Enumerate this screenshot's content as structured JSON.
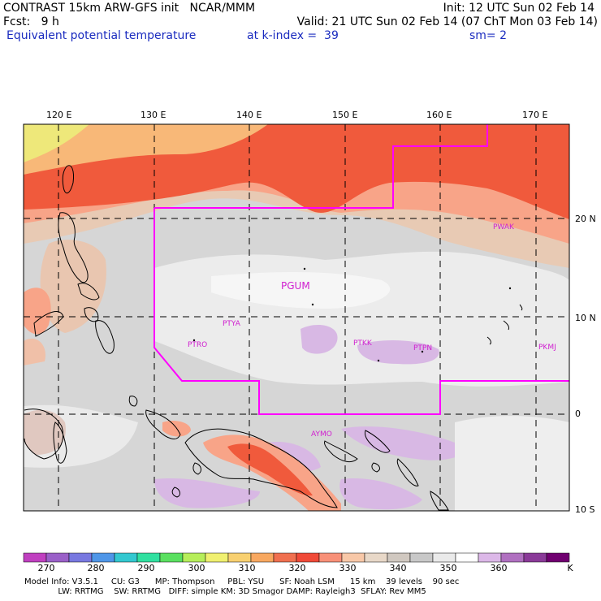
{
  "header": {
    "title": "CONTRAST 15km ARW-GFS init   NCAR/MMM",
    "init": "Init: 12 UTC Sun 02 Feb 14",
    "fcst": "Fcst:   9 h",
    "valid": "Valid: 21 UTC Sun 02 Feb 14 (07 ChT Mon 03 Feb 14)",
    "field": "Equivalent potential temperature",
    "level": "at k-index =  39",
    "smooth": "sm= 2"
  },
  "axes": {
    "lon_labels": [
      "120 E",
      "130 E",
      "140 E",
      "150 E",
      "160 E",
      "170 E"
    ],
    "lat_labels": [
      "20 N",
      "10 N",
      "0",
      "10 S"
    ]
  },
  "stations": [
    "PGUM",
    "PTYA",
    "PTRO",
    "PTKK",
    "PTPN",
    "PKMJ",
    "PWAK",
    "AYMO"
  ],
  "colorbar": {
    "labels": [
      "270",
      "280",
      "290",
      "300",
      "310",
      "320",
      "330",
      "340",
      "350",
      "360",
      "K"
    ],
    "colors": [
      "#c040c0",
      "#9a60c8",
      "#7878e0",
      "#4f96e8",
      "#33c8d0",
      "#30e0a0",
      "#5ae060",
      "#b6ee5a",
      "#f0f070",
      "#f8d070",
      "#f8a860",
      "#f07050",
      "#f04a38",
      "#f89078",
      "#f8c8a8",
      "#e8d8c8",
      "#d0c8c0",
      "#c8c8c8",
      "#eaeaea",
      "#ffffff",
      "#dcb8e8",
      "#b070c0",
      "#8a3a98",
      "#700070"
    ]
  },
  "model_info": {
    "line1": "Model Info: V3.5.1     CU: G3      MP: Thompson     PBL: YSU      SF: Noah LSM      15 km    39 levels    90 sec",
    "line2": "             LW: RRTMG    SW: RRTMG   DIFF: simple KM: 3D Smagor DAMP: Rayleigh3  SFLAY: Rev MM5"
  },
  "colors": {
    "boundary": "#ff00ff",
    "station": "#d020d0",
    "title_blue": "#1a2bbf"
  }
}
